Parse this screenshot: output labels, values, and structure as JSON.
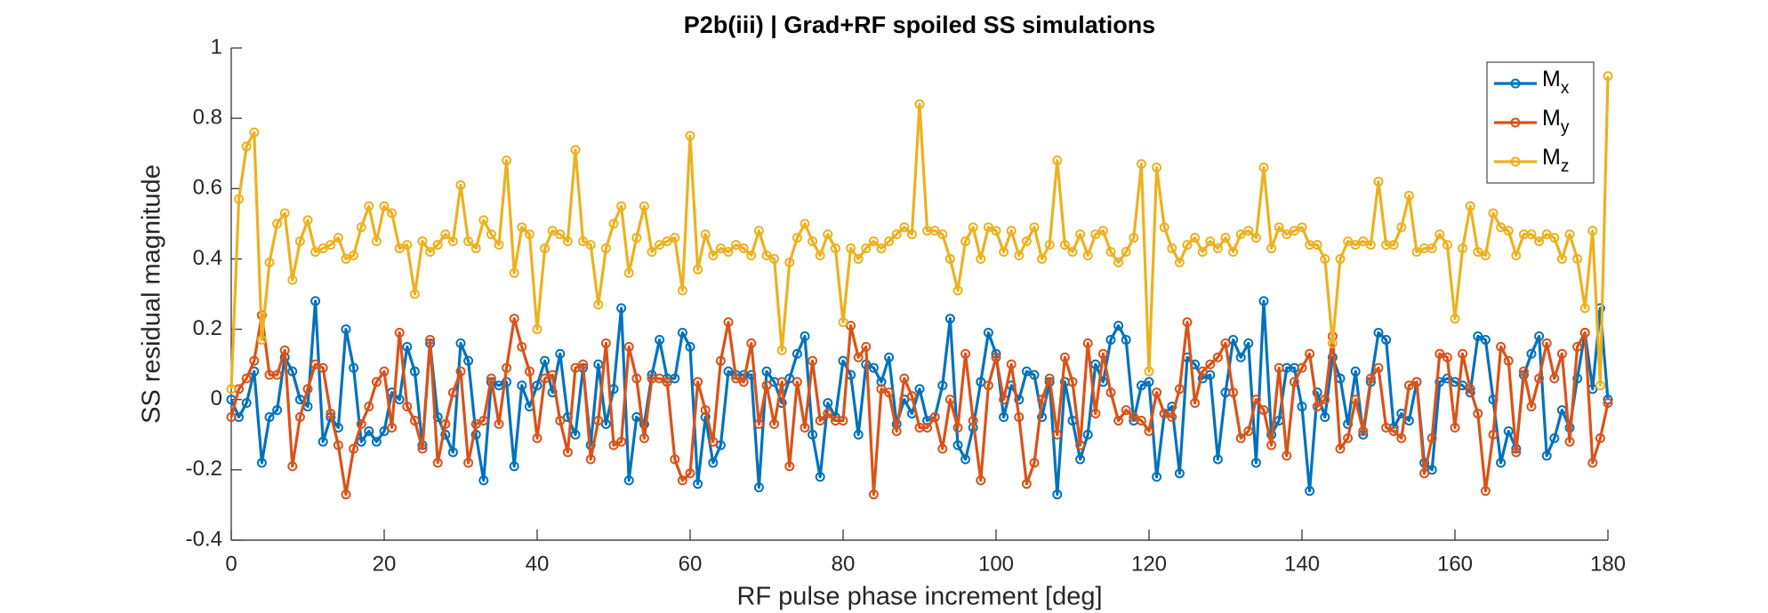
{
  "chart_data": {
    "type": "line",
    "title": "P2b(iii) | Grad+RF spoiled SS simulations",
    "xlabel": "RF pulse phase increment [deg]",
    "ylabel": "SS residual magnitude",
    "x": [
      0,
      1,
      2,
      3,
      4,
      5,
      6,
      7,
      8,
      9,
      10,
      11,
      12,
      13,
      14,
      15,
      16,
      17,
      18,
      19,
      20,
      21,
      22,
      23,
      24,
      25,
      26,
      27,
      28,
      29,
      30,
      31,
      32,
      33,
      34,
      35,
      36,
      37,
      38,
      39,
      40,
      41,
      42,
      43,
      44,
      45,
      46,
      47,
      48,
      49,
      50,
      51,
      52,
      53,
      54,
      55,
      56,
      57,
      58,
      59,
      60,
      61,
      62,
      63,
      64,
      65,
      66,
      67,
      68,
      69,
      70,
      71,
      72,
      73,
      74,
      75,
      76,
      77,
      78,
      79,
      80,
      81,
      82,
      83,
      84,
      85,
      86,
      87,
      88,
      89,
      90,
      91,
      92,
      93,
      94,
      95,
      96,
      97,
      98,
      99,
      100,
      101,
      102,
      103,
      104,
      105,
      106,
      107,
      108,
      109,
      110,
      111,
      112,
      113,
      114,
      115,
      116,
      117,
      118,
      119,
      120,
      121,
      122,
      123,
      124,
      125,
      126,
      127,
      128,
      129,
      130,
      131,
      132,
      133,
      134,
      135,
      136,
      137,
      138,
      139,
      140,
      141,
      142,
      143,
      144,
      145,
      146,
      147,
      148,
      149,
      150,
      151,
      152,
      153,
      154,
      155,
      156,
      157,
      158,
      159,
      160,
      161,
      162,
      163,
      164,
      165,
      166,
      167,
      168,
      169,
      170,
      171,
      172,
      173,
      174,
      175,
      176,
      177,
      178,
      179,
      180
    ],
    "series": [
      {
        "name": "Mx",
        "color": "#0072BD",
        "values": [
          0.0,
          -0.05,
          -0.01,
          0.08,
          -0.18,
          -0.05,
          -0.03,
          0.12,
          0.08,
          0.0,
          -0.02,
          0.28,
          -0.12,
          -0.05,
          -0.08,
          0.2,
          0.09,
          -0.12,
          -0.09,
          -0.12,
          -0.09,
          0.02,
          0.0,
          0.15,
          0.08,
          -0.13,
          0.16,
          -0.05,
          -0.1,
          -0.15,
          0.16,
          0.11,
          -0.1,
          -0.23,
          0.05,
          0.04,
          0.05,
          -0.19,
          0.04,
          -0.02,
          0.04,
          0.11,
          0.02,
          0.13,
          -0.05,
          -0.1,
          0.09,
          -0.13,
          0.1,
          -0.07,
          0.03,
          0.26,
          -0.23,
          -0.05,
          -0.07,
          0.07,
          0.17,
          0.06,
          0.06,
          0.19,
          0.15,
          -0.24,
          -0.05,
          -0.18,
          -0.13,
          0.08,
          0.07,
          0.07,
          0.07,
          -0.25,
          0.08,
          0.05,
          -0.01,
          0.06,
          0.13,
          0.18,
          -0.1,
          -0.22,
          -0.01,
          -0.05,
          0.11,
          0.07,
          -0.1,
          0.1,
          0.09,
          0.05,
          0.12,
          -0.07,
          0.0,
          -0.04,
          0.03,
          -0.06,
          -0.05,
          0.04,
          0.23,
          -0.13,
          -0.17,
          -0.08,
          0.05,
          0.19,
          0.13,
          -0.05,
          0.04,
          0.0,
          0.08,
          0.07,
          -0.05,
          0.05,
          -0.27,
          0.05,
          -0.06,
          -0.17,
          -0.1,
          0.1,
          0.05,
          0.17,
          0.21,
          0.17,
          -0.06,
          0.04,
          0.05,
          -0.22,
          -0.04,
          -0.02,
          -0.21,
          0.12,
          0.1,
          0.06,
          0.07,
          -0.17,
          0.02,
          0.17,
          0.12,
          0.16,
          -0.18,
          0.28,
          -0.1,
          -0.06,
          0.09,
          0.09,
          -0.02,
          -0.26,
          0.02,
          -0.05,
          0.12,
          0.06,
          -0.07,
          0.08,
          -0.1,
          0.05,
          0.19,
          0.17,
          -0.08,
          -0.04,
          -0.06,
          0.05,
          -0.18,
          -0.2,
          0.05,
          0.06,
          0.05,
          0.04,
          0.02,
          0.18,
          0.17,
          0.0,
          -0.18,
          -0.09,
          -0.14,
          0.07,
          0.13,
          0.18,
          -0.16,
          -0.11,
          -0.03,
          -0.08,
          0.06,
          0.19,
          0.03,
          0.26,
          0.0
        ]
      },
      {
        "name": "My",
        "color": "#D95319",
        "values": [
          -0.05,
          0.03,
          0.06,
          0.11,
          0.24,
          0.07,
          0.07,
          0.14,
          -0.19,
          -0.05,
          0.03,
          0.1,
          0.09,
          -0.04,
          -0.13,
          -0.27,
          -0.14,
          -0.07,
          -0.02,
          0.05,
          0.08,
          -0.08,
          0.19,
          -0.02,
          -0.06,
          -0.14,
          0.17,
          -0.18,
          -0.07,
          0.02,
          0.08,
          -0.18,
          -0.07,
          -0.06,
          0.06,
          -0.07,
          0.09,
          0.23,
          0.15,
          0.08,
          -0.11,
          0.06,
          0.07,
          -0.06,
          -0.15,
          0.09,
          0.1,
          -0.17,
          -0.06,
          0.16,
          -0.13,
          -0.12,
          0.15,
          0.06,
          -0.11,
          0.06,
          0.06,
          0.05,
          -0.17,
          -0.23,
          -0.21,
          0.05,
          -0.03,
          -0.12,
          0.11,
          0.22,
          0.06,
          0.05,
          0.16,
          -0.07,
          0.04,
          -0.07,
          0.05,
          -0.19,
          0.05,
          -0.08,
          0.11,
          -0.06,
          -0.04,
          -0.06,
          -0.06,
          0.21,
          0.12,
          0.15,
          -0.27,
          0.03,
          0.02,
          -0.09,
          0.06,
          0.01,
          -0.08,
          -0.08,
          -0.05,
          -0.14,
          0.0,
          -0.08,
          0.13,
          -0.06,
          -0.23,
          0.04,
          0.12,
          0.0,
          0.1,
          -0.05,
          -0.24,
          -0.18,
          0.0,
          0.06,
          -0.1,
          0.12,
          0.05,
          -0.13,
          0.16,
          -0.04,
          0.13,
          0.02,
          -0.06,
          -0.03,
          -0.05,
          -0.06,
          -0.09,
          0.02,
          -0.04,
          -0.05,
          0.03,
          0.22,
          -0.01,
          0.08,
          0.1,
          0.12,
          0.16,
          0.02,
          -0.11,
          -0.09,
          0.0,
          -0.03,
          -0.13,
          0.09,
          -0.16,
          0.05,
          0.09,
          0.13,
          -0.02,
          0.0,
          0.18,
          -0.14,
          -0.11,
          0.0,
          -0.09,
          0.06,
          0.09,
          -0.08,
          -0.09,
          -0.11,
          0.04,
          0.05,
          -0.21,
          -0.11,
          0.13,
          0.12,
          -0.08,
          0.13,
          0.03,
          -0.04,
          -0.26,
          -0.1,
          0.15,
          0.11,
          -0.15,
          0.08,
          -0.02,
          0.06,
          0.16,
          0.06,
          0.13,
          -0.12,
          0.15,
          0.19,
          -0.18,
          -0.11,
          -0.01
        ]
      },
      {
        "name": "Mz",
        "color": "#EDB120",
        "values": [
          0.03,
          0.57,
          0.72,
          0.76,
          0.17,
          0.39,
          0.5,
          0.53,
          0.34,
          0.45,
          0.51,
          0.42,
          0.43,
          0.44,
          0.46,
          0.4,
          0.41,
          0.49,
          0.55,
          0.45,
          0.55,
          0.53,
          0.43,
          0.44,
          0.3,
          0.45,
          0.42,
          0.44,
          0.47,
          0.45,
          0.61,
          0.45,
          0.43,
          0.51,
          0.47,
          0.44,
          0.68,
          0.36,
          0.49,
          0.47,
          0.2,
          0.43,
          0.48,
          0.47,
          0.45,
          0.71,
          0.45,
          0.44,
          0.27,
          0.43,
          0.5,
          0.55,
          0.36,
          0.46,
          0.55,
          0.42,
          0.44,
          0.45,
          0.46,
          0.31,
          0.75,
          0.37,
          0.47,
          0.41,
          0.43,
          0.42,
          0.44,
          0.43,
          0.41,
          0.48,
          0.41,
          0.4,
          0.14,
          0.39,
          0.46,
          0.5,
          0.45,
          0.41,
          0.47,
          0.43,
          0.22,
          0.43,
          0.4,
          0.43,
          0.45,
          0.43,
          0.45,
          0.47,
          0.49,
          0.47,
          0.84,
          0.48,
          0.48,
          0.47,
          0.4,
          0.31,
          0.45,
          0.49,
          0.4,
          0.49,
          0.48,
          0.42,
          0.48,
          0.41,
          0.45,
          0.49,
          0.4,
          0.44,
          0.68,
          0.44,
          0.42,
          0.47,
          0.41,
          0.47,
          0.48,
          0.42,
          0.39,
          0.42,
          0.46,
          0.67,
          0.08,
          0.66,
          0.49,
          0.43,
          0.39,
          0.44,
          0.46,
          0.42,
          0.45,
          0.43,
          0.46,
          0.42,
          0.47,
          0.48,
          0.46,
          0.66,
          0.43,
          0.49,
          0.47,
          0.48,
          0.49,
          0.44,
          0.44,
          0.4,
          0.16,
          0.4,
          0.45,
          0.44,
          0.45,
          0.44,
          0.62,
          0.44,
          0.44,
          0.49,
          0.58,
          0.42,
          0.43,
          0.43,
          0.47,
          0.44,
          0.23,
          0.43,
          0.55,
          0.42,
          0.41,
          0.53,
          0.49,
          0.48,
          0.41,
          0.47,
          0.47,
          0.45,
          0.47,
          0.46,
          0.4,
          0.47,
          0.4,
          0.26,
          0.48,
          0.04,
          0.92
        ]
      }
    ],
    "xlim": [
      0,
      180
    ],
    "xticks": [
      0,
      20,
      40,
      60,
      80,
      100,
      120,
      140,
      160,
      180
    ],
    "ylim": [
      -0.4,
      1
    ],
    "yticks": [
      -0.4,
      -0.2,
      0,
      0.2,
      0.4,
      0.6,
      0.8,
      1
    ],
    "grid": false,
    "legend": "upper right"
  }
}
